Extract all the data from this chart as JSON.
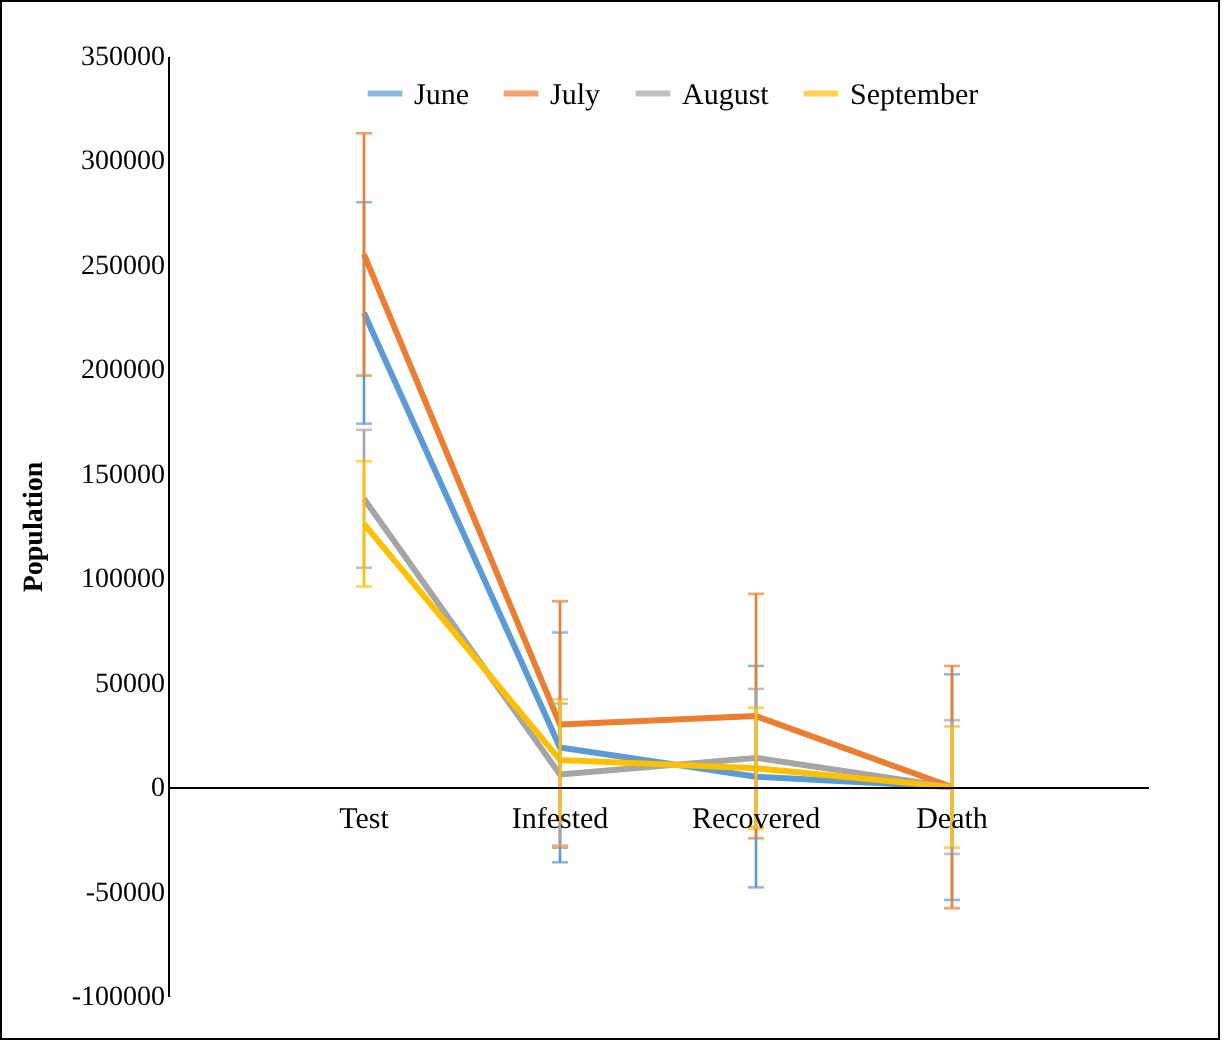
{
  "chart_data": {
    "type": "line",
    "ylabel": "Population",
    "categories": [
      "Test",
      "Infested",
      "Recovered",
      "Death"
    ],
    "series": [
      {
        "name": "June",
        "color": "#5b9bd5",
        "values": [
          227000,
          19000,
          5000,
          0
        ],
        "errors": [
          53000,
          55000,
          53000,
          54000
        ]
      },
      {
        "name": "July",
        "color": "#ed7d31",
        "values": [
          255000,
          30000,
          34000,
          0
        ],
        "errors": [
          58000,
          59000,
          58500,
          58000
        ]
      },
      {
        "name": "August",
        "color": "#a5a5a5",
        "values": [
          138000,
          6000,
          14000,
          0
        ],
        "errors": [
          33000,
          34000,
          33000,
          32000
        ]
      },
      {
        "name": "September",
        "color": "#ffc000",
        "values": [
          126000,
          13000,
          9000,
          0
        ],
        "errors": [
          30000,
          29000,
          29000,
          29000
        ]
      }
    ],
    "ylim": [
      -100000,
      350000
    ],
    "yticks": [
      -100000,
      -50000,
      0,
      50000,
      100000,
      150000,
      200000,
      250000,
      300000,
      350000
    ],
    "grid": false,
    "legend": "top",
    "marker": "none",
    "line_style": "solid"
  }
}
